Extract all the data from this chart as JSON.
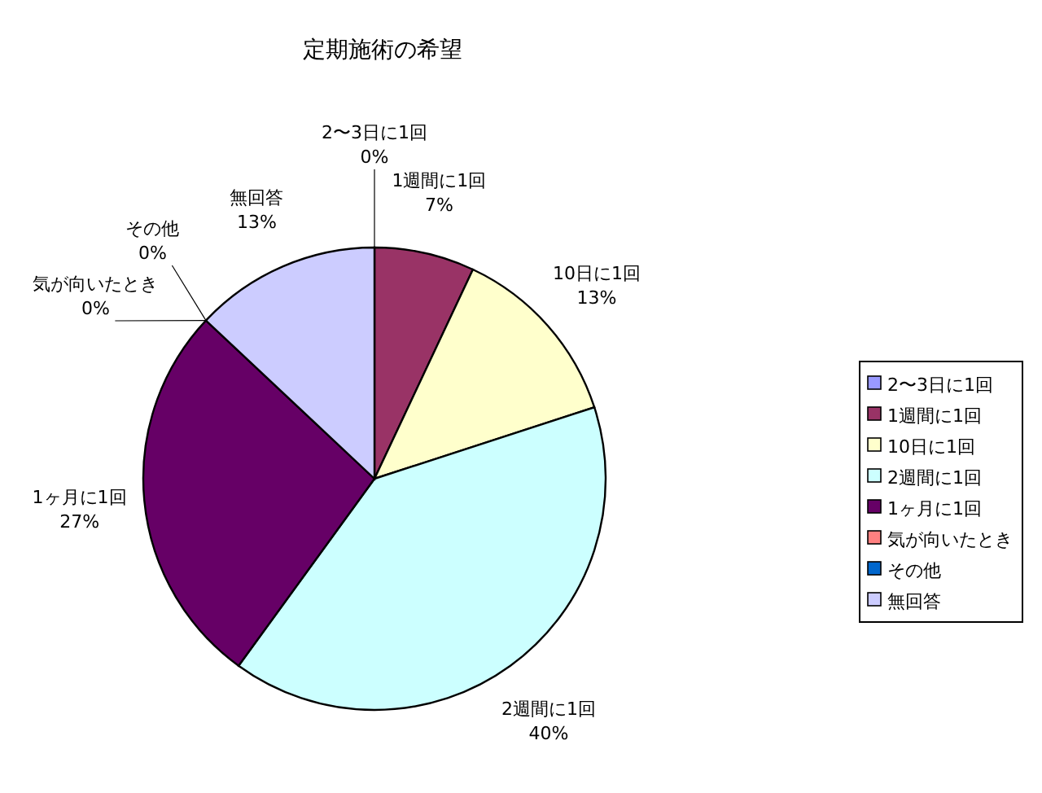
{
  "chart_data": {
    "type": "pie",
    "title": "定期施術の希望",
    "categories": [
      "2〜3日に1回",
      "1週間に1回",
      "10日に1回",
      "2週間に1回",
      "1ヶ月に1回",
      "気が向いたとき",
      "その他",
      "無回答"
    ],
    "values": [
      0,
      7,
      13,
      40,
      27,
      0,
      0,
      13
    ],
    "value_labels": [
      "0%",
      "7%",
      "13%",
      "40%",
      "27%",
      "0%",
      "0%",
      "13%"
    ],
    "colors": [
      "#9999ff",
      "#993366",
      "#ffffcc",
      "#ccffff",
      "#660066",
      "#ff8080",
      "#0066cc",
      "#ccccff"
    ],
    "legend": "right"
  }
}
